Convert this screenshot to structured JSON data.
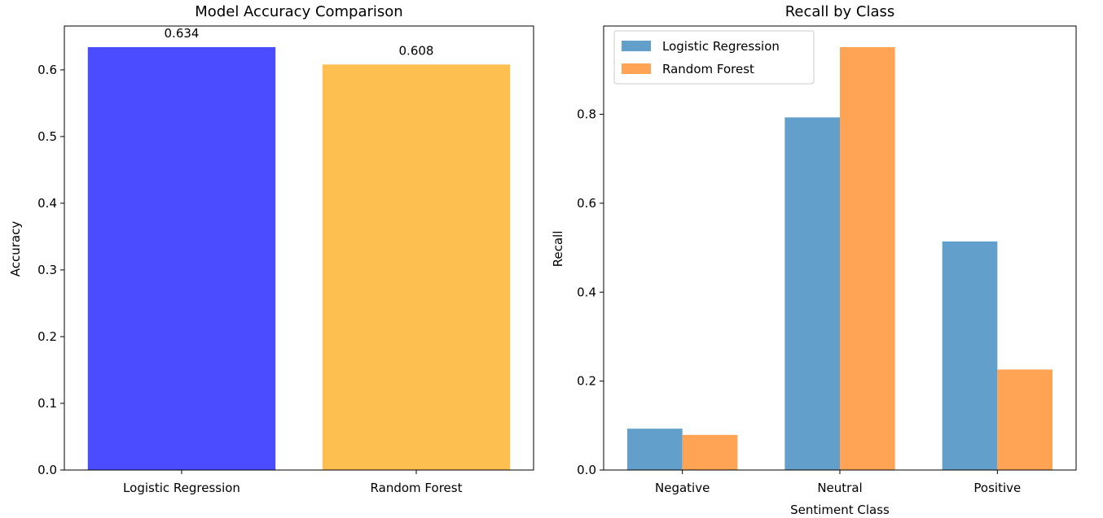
{
  "chart_data": [
    {
      "type": "bar",
      "title": "Model Accuracy Comparison",
      "xlabel": "",
      "ylabel": "Accuracy",
      "categories": [
        "Logistic Regression",
        "Random Forest"
      ],
      "values": [
        0.634,
        0.608
      ],
      "value_labels": [
        "0.634",
        "0.608"
      ],
      "colors": [
        "#4b4bff",
        "#fdbf4f"
      ],
      "ylim": [
        0,
        0.6657
      ],
      "yticks": [
        0.0,
        0.1,
        0.2,
        0.3,
        0.4,
        0.5,
        0.6
      ],
      "ytick_labels": [
        "0.0",
        "0.1",
        "0.2",
        "0.3",
        "0.4",
        "0.5",
        "0.6"
      ],
      "grid": false
    },
    {
      "type": "bar",
      "title": "Recall by Class",
      "xlabel": "Sentiment Class",
      "ylabel": "Recall",
      "categories": [
        "Negative",
        "Neutral",
        "Positive"
      ],
      "series": [
        {
          "name": "Logistic Regression",
          "values": [
            0.093,
            0.793,
            0.514
          ],
          "color": "#62a0cb"
        },
        {
          "name": "Random Forest",
          "values": [
            0.079,
            0.951,
            0.226
          ],
          "color": "#ffa455"
        }
      ],
      "ylim": [
        0,
        0.9985
      ],
      "yticks": [
        0.0,
        0.2,
        0.4,
        0.6,
        0.8
      ],
      "ytick_labels": [
        "0.0",
        "0.2",
        "0.4",
        "0.6",
        "0.8"
      ],
      "legend_position": "top-left",
      "grid": false
    }
  ]
}
